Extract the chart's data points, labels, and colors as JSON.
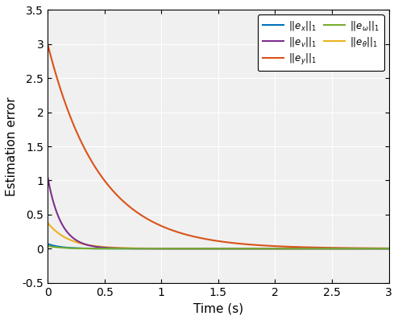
{
  "title": "",
  "xlabel": "Time (s)",
  "ylabel": "Estimation error",
  "xlim": [
    0,
    3
  ],
  "ylim": [
    -0.5,
    3.5
  ],
  "xticks": [
    0,
    0.5,
    1,
    1.5,
    2,
    2.5,
    3
  ],
  "yticks": [
    -0.5,
    0,
    0.5,
    1,
    1.5,
    2,
    2.5,
    3,
    3.5
  ],
  "series": {
    "ex": {
      "color": "#0072BD",
      "init": 0.07,
      "decay": 9.0
    },
    "ey": {
      "color": "#D95319",
      "init": 3.0,
      "decay": 2.2
    },
    "etheta": {
      "color": "#EDB120",
      "init": 0.38,
      "decay": 5.5
    },
    "ev": {
      "color": "#7E2F8E",
      "init": 1.05,
      "decay": 8.5
    },
    "eomega": {
      "color": "#77AC30",
      "init": 0.04,
      "decay": 9.0
    }
  },
  "bg_color": "#F0F0F0",
  "fig_bg": "#FFFFFF",
  "figsize": [
    4.94,
    3.98
  ],
  "dpi": 100,
  "linewidth": 1.5
}
